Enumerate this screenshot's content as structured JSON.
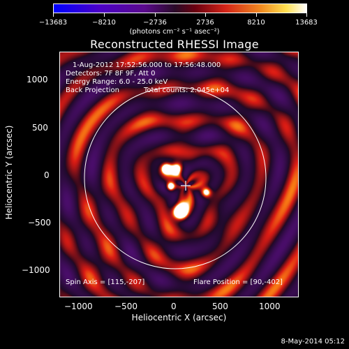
{
  "colorbar": {
    "tick_labels": [
      "−13683",
      "−8210",
      "−2736",
      "2736",
      "8210",
      "13683"
    ],
    "units": "(photons cm⁻² s⁻¹ asec⁻²)"
  },
  "title": "Reconstructed RHESSI Image",
  "info": {
    "time_range": "1-Aug-2012 17:52:56.000 to 17:56:48.000",
    "detectors": "Detectors: 7F 8F 9F, Att 0",
    "energy_range": "Energy Range: 6.0 - 25.0 keV",
    "method": "Back Projection",
    "total_counts": "Total counts: 2.045e+04",
    "spin_axis": "Spin Axis = [115,-207]",
    "flare_position": "Flare Position = [90,-402]"
  },
  "axes": {
    "x_label": "Heliocentric X (arcsec)",
    "y_label": "Heliocentric Y (arcsec)",
    "x_ticks": [
      "−1000",
      "−500",
      "0",
      "500",
      "1000"
    ],
    "y_ticks": [
      "1000",
      "500",
      "0",
      "−500",
      "−1000"
    ]
  },
  "footer": {
    "date": "8-May-2014 05:12"
  }
}
